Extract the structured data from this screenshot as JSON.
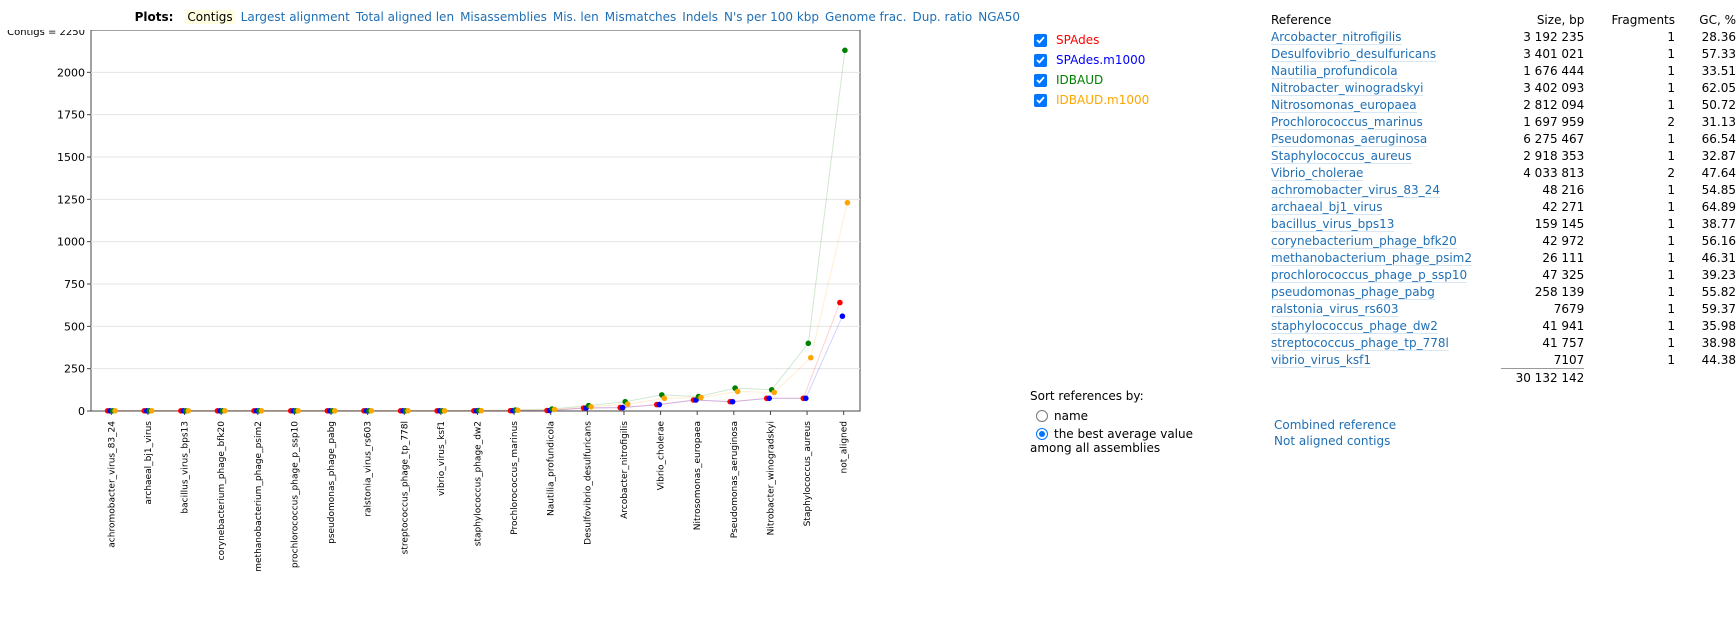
{
  "plots": {
    "title": "Plots:",
    "tabs": [
      "Contigs",
      "Largest alignment",
      "Total aligned len",
      "Misassemblies",
      "Mis. len",
      "Mismatches",
      "Indels",
      "N's per 100 kbp",
      "Genome frac.",
      "Dup. ratio",
      "NGA50"
    ],
    "active": "Contigs"
  },
  "legend": [
    {
      "label": "SPAdes",
      "color": "#ff0000",
      "checked": true
    },
    {
      "label": "SPAdes.m1000",
      "color": "#0000ff",
      "checked": true
    },
    {
      "label": "IDBAUD",
      "color": "#008000",
      "checked": true
    },
    {
      "label": "IDBAUD.m1000",
      "color": "#ffa500",
      "checked": true
    }
  ],
  "sort": {
    "title": "Sort references by:",
    "options": [
      "name",
      "the best average value"
    ],
    "selected": "the best average value",
    "tail": "among all assemblies"
  },
  "table": {
    "headers": {
      "reference": "Reference",
      "size": "Size, bp",
      "fragments": "Fragments",
      "gc": "GC, %"
    },
    "rows": [
      {
        "name": "Arcobacter_nitrofigilis",
        "size": "3 192 235",
        "fragments": "1",
        "gc": "28.36"
      },
      {
        "name": "Desulfovibrio_desulfuricans",
        "size": "3 401 021",
        "fragments": "1",
        "gc": "57.33"
      },
      {
        "name": "Nautilia_profundicola",
        "size": "1 676 444",
        "fragments": "1",
        "gc": "33.51"
      },
      {
        "name": "Nitrobacter_winogradskyi",
        "size": "3 402 093",
        "fragments": "1",
        "gc": "62.05"
      },
      {
        "name": "Nitrosomonas_europaea",
        "size": "2 812 094",
        "fragments": "1",
        "gc": "50.72"
      },
      {
        "name": "Prochlorococcus_marinus",
        "size": "1 697 959",
        "fragments": "2",
        "gc": "31.13"
      },
      {
        "name": "Pseudomonas_aeruginosa",
        "size": "6 275 467",
        "fragments": "1",
        "gc": "66.54"
      },
      {
        "name": "Staphylococcus_aureus",
        "size": "2 918 353",
        "fragments": "1",
        "gc": "32.87"
      },
      {
        "name": "Vibrio_cholerae",
        "size": "4 033 813",
        "fragments": "2",
        "gc": "47.64"
      },
      {
        "name": "achromobacter_virus_83_24",
        "size": "48 216",
        "fragments": "1",
        "gc": "54.85"
      },
      {
        "name": "archaeal_bj1_virus",
        "size": "42 271",
        "fragments": "1",
        "gc": "64.89"
      },
      {
        "name": "bacillus_virus_bps13",
        "size": "159 145",
        "fragments": "1",
        "gc": "38.77"
      },
      {
        "name": "corynebacterium_phage_bfk20",
        "size": "42 972",
        "fragments": "1",
        "gc": "56.16"
      },
      {
        "name": "methanobacterium_phage_psim2",
        "size": "26 111",
        "fragments": "1",
        "gc": "46.31"
      },
      {
        "name": "prochlorococcus_phage_p_ssp10",
        "size": "47 325",
        "fragments": "1",
        "gc": "39.23"
      },
      {
        "name": "pseudomonas_phage_pabg",
        "size": "258 139",
        "fragments": "1",
        "gc": "55.82"
      },
      {
        "name": "ralstonia_virus_rs603",
        "size": "7679",
        "fragments": "1",
        "gc": "59.37"
      },
      {
        "name": "staphylococcus_phage_dw2",
        "size": "41 941",
        "fragments": "1",
        "gc": "35.98"
      },
      {
        "name": "streptococcus_phage_tp_778l",
        "size": "41 757",
        "fragments": "1",
        "gc": "38.98"
      },
      {
        "name": "vibrio_virus_ksf1",
        "size": "7107",
        "fragments": "1",
        "gc": "44.38"
      }
    ],
    "total_size": "30 132 142"
  },
  "links": {
    "combined": "Combined reference",
    "not_aligned": "Not aligned contigs"
  },
  "chart_data": {
    "type": "scatter",
    "max_label": "Contigs = 2250",
    "ylim": [
      0,
      2250
    ],
    "yticks": [
      0,
      250,
      500,
      750,
      1000,
      1250,
      1500,
      1750,
      2000
    ],
    "categories": [
      "achromobacter_virus_83_24",
      "archaeal_bj1_virus",
      "bacillus_virus_bps13",
      "corynebacterium_phage_bfk20",
      "methanobacterium_phage_psim2",
      "prochlorococcus_phage_p_ssp10",
      "pseudomonas_phage_pabg",
      "ralstonia_virus_rs603",
      "streptococcus_phage_tp_778l",
      "vibrio_virus_ksf1",
      "staphylococcus_phage_dw2",
      "Prochlorococcus_marinus",
      "Nautilia_profundicola",
      "Desulfovibrio_desulfuricans",
      "Arcobacter_nitrofigilis",
      "Vibrio_cholerae",
      "Nitrosomonas_europaea",
      "Pseudomonas_aeruginosa",
      "Nitrobacter_winogradskyi",
      "Staphylococcus_aureus",
      "not_aligned"
    ],
    "series": [
      {
        "name": "SPAdes",
        "color": "#ff0000",
        "values": [
          1,
          1,
          1,
          1,
          1,
          1,
          1,
          1,
          1,
          1,
          1,
          2,
          3,
          18,
          20,
          38,
          65,
          55,
          75,
          75,
          640
        ]
      },
      {
        "name": "SPAdes.m1000",
        "color": "#0000ff",
        "values": [
          1,
          1,
          1,
          1,
          1,
          1,
          1,
          1,
          1,
          1,
          1,
          2,
          3,
          18,
          20,
          38,
          65,
          55,
          75,
          75,
          560
        ]
      },
      {
        "name": "IDBAUD",
        "color": "#008000",
        "values": [
          1,
          1,
          1,
          1,
          1,
          1,
          1,
          1,
          1,
          1,
          3,
          6,
          12,
          32,
          55,
          95,
          85,
          135,
          125,
          400,
          2130
        ]
      },
      {
        "name": "IDBAUD.m1000",
        "color": "#ffa500",
        "values": [
          1,
          1,
          1,
          1,
          1,
          1,
          1,
          1,
          1,
          1,
          2,
          4,
          9,
          25,
          40,
          75,
          80,
          115,
          110,
          315,
          1230
        ]
      }
    ]
  }
}
